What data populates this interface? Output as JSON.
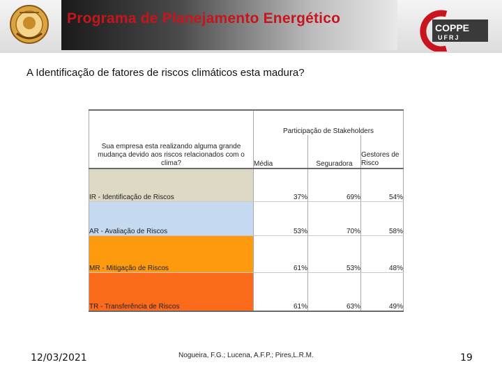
{
  "header": {
    "title": "Programa de Planejamento Energético",
    "left_logo_icon": "ufrj-seal-icon",
    "right_logo": {
      "icon": "coppe-logo-icon",
      "line1": "COPPE",
      "line2": "UFRJ"
    }
  },
  "question": "A Identificação de fatores de riscos climáticos esta madura?",
  "table": {
    "question_header": "Sua empresa esta realizando alguma grande mudança devido aos riscos relacionados com o clima?",
    "group_header": "Participação de Stakeholders",
    "columns": [
      "Média",
      "Seguradora",
      "Gestores de Risco"
    ],
    "rows": [
      {
        "label": "IR - Identificação de Riscos",
        "media": "37%",
        "seguradora": "69%",
        "gestores": "54%",
        "color": "#ddd9c4"
      },
      {
        "label": "AR - Avaliação de Riscos",
        "media": "53%",
        "seguradora": "70%",
        "gestores": "58%",
        "color": "#c5d9f1"
      },
      {
        "label": "MR - Mitigação de Riscos",
        "media": "61%",
        "seguradora": "53%",
        "gestores": "48%",
        "color": "#fd9a0e"
      },
      {
        "label": "TR - Transferência de Riscos",
        "media": "61%",
        "seguradora": "63%",
        "gestores": "49%",
        "color": "#fc6a1c"
      }
    ]
  },
  "footer": {
    "date": "12/03/2021",
    "authors": "Nogueira, F.G.; Lucena, A.F.P.; Pires,L.R.M.",
    "page_number": "19"
  }
}
